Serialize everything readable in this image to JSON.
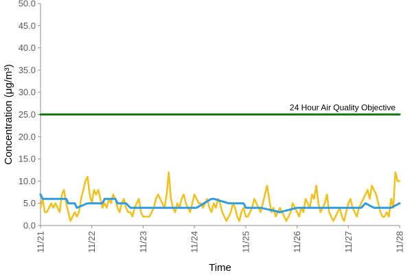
{
  "chart_data": {
    "type": "line",
    "xlabel": "Time",
    "ylabel": "Concentration (μg/m³)",
    "ylim": [
      0,
      50
    ],
    "yticks": [
      "0.0",
      "5.0",
      "10.0",
      "15.0",
      "20.0",
      "25.0",
      "30.0",
      "35.0",
      "40.0",
      "45.0",
      "50.0"
    ],
    "xlim": [
      "11/21",
      "11/28"
    ],
    "xticks": [
      "11/21",
      "11/22",
      "11/23",
      "11/24",
      "11/25",
      "11/26",
      "11/27",
      "11/28"
    ],
    "grid": false,
    "legend": "none",
    "annotations": [
      {
        "text": "24 Hour Air Quality Objective",
        "y": 25
      }
    ],
    "colors": {
      "hourly": "#f2c01c",
      "daily": "#2f9be0",
      "objective": "#1a7a1a"
    },
    "series": [
      {
        "key": "hourly",
        "color": "#f2c01c",
        "x_hours_from_11_21": [
          0,
          1,
          2,
          3,
          4,
          5,
          6,
          7,
          8,
          9,
          10,
          11,
          12,
          13,
          14,
          15,
          16,
          17,
          18,
          19,
          20,
          21,
          22,
          23,
          24,
          25,
          26,
          27,
          28,
          29,
          30,
          31,
          32,
          33,
          34,
          35,
          36,
          37,
          38,
          39,
          40,
          41,
          42,
          43,
          44,
          45,
          46,
          47,
          48,
          49,
          50,
          51,
          52,
          53,
          54,
          55,
          56,
          57,
          58,
          59,
          60,
          61,
          62,
          63,
          64,
          65,
          66,
          67,
          68,
          69,
          70,
          71,
          72,
          73,
          74,
          75,
          76,
          77,
          78,
          79,
          80,
          81,
          82,
          83,
          84,
          85,
          86,
          87,
          88,
          89,
          90,
          91,
          92,
          93,
          94,
          95,
          96,
          97,
          98,
          99,
          100,
          101,
          102,
          103,
          104,
          105,
          106,
          107,
          108,
          109,
          110,
          111,
          112,
          113,
          114,
          115,
          116,
          117,
          118,
          119,
          120,
          121,
          122,
          123,
          124,
          125,
          126,
          127,
          128,
          129,
          130,
          131,
          132,
          133,
          134,
          135,
          136,
          137,
          138,
          139,
          140,
          141,
          142,
          143,
          144,
          145,
          146,
          147,
          148,
          149,
          150,
          151,
          152,
          153,
          154,
          155,
          156,
          157,
          158,
          159,
          160,
          161,
          162,
          163,
          164,
          165,
          166,
          167,
          168
        ],
        "values": [
          4,
          6,
          3,
          3,
          4,
          5,
          4,
          5,
          4,
          3,
          7,
          8,
          5,
          3,
          1,
          2,
          3,
          2,
          3,
          6,
          8,
          10,
          11,
          7,
          5,
          8,
          7,
          8,
          6,
          4,
          5,
          4,
          6,
          5,
          7,
          6,
          4,
          3,
          5,
          6,
          4,
          3,
          3,
          2,
          4,
          5,
          6,
          3,
          2,
          2,
          2,
          2,
          3,
          4,
          6,
          7,
          6,
          5,
          4,
          7,
          12,
          6,
          4,
          3,
          5,
          4,
          6,
          7,
          5,
          4,
          3,
          5,
          7,
          6,
          5,
          5,
          4,
          5,
          6,
          4,
          3,
          5,
          4,
          6,
          5,
          3,
          2,
          1,
          2,
          3,
          5,
          4,
          2,
          1,
          3,
          4,
          2,
          2,
          3,
          4,
          6,
          5,
          4,
          3,
          5,
          7,
          9,
          6,
          3,
          4,
          2,
          3,
          4,
          3,
          2,
          1,
          2,
          3,
          5,
          4,
          3,
          2,
          4,
          3,
          6,
          5,
          4,
          7,
          6,
          9,
          5,
          3,
          4,
          5,
          7,
          3,
          2,
          1,
          2,
          3,
          4,
          2,
          1,
          3,
          5,
          6,
          4,
          3,
          2,
          4,
          5,
          6,
          7,
          8,
          6,
          9,
          8,
          7,
          5,
          3,
          2,
          2,
          3,
          2,
          6,
          4,
          12,
          10,
          10
        ]
      },
      {
        "key": "daily",
        "color": "#2f9be0",
        "x_hours_from_11_21": [
          0,
          1,
          5,
          8,
          11,
          12,
          13,
          16,
          17,
          22,
          24,
          25,
          26,
          29,
          30,
          35,
          36,
          40,
          42,
          48,
          72,
          73,
          80,
          81,
          88,
          95,
          96,
          98,
          101,
          103,
          112,
          120,
          130,
          144,
          148,
          150,
          152,
          156,
          160,
          162,
          164,
          168
        ],
        "values": [
          7,
          6,
          6,
          6,
          6,
          6,
          5,
          5,
          4,
          5,
          5,
          5,
          5,
          5,
          6,
          6,
          5,
          5,
          4,
          4,
          4,
          4,
          6,
          6,
          5,
          5,
          4,
          4,
          4,
          4,
          3,
          4,
          4,
          4,
          4,
          4,
          5,
          4,
          4,
          4,
          4,
          5
        ]
      },
      {
        "key": "objective",
        "color": "#1a7a1a",
        "x_hours_from_11_21": [
          0,
          168
        ],
        "values": [
          25,
          25
        ]
      }
    ]
  }
}
